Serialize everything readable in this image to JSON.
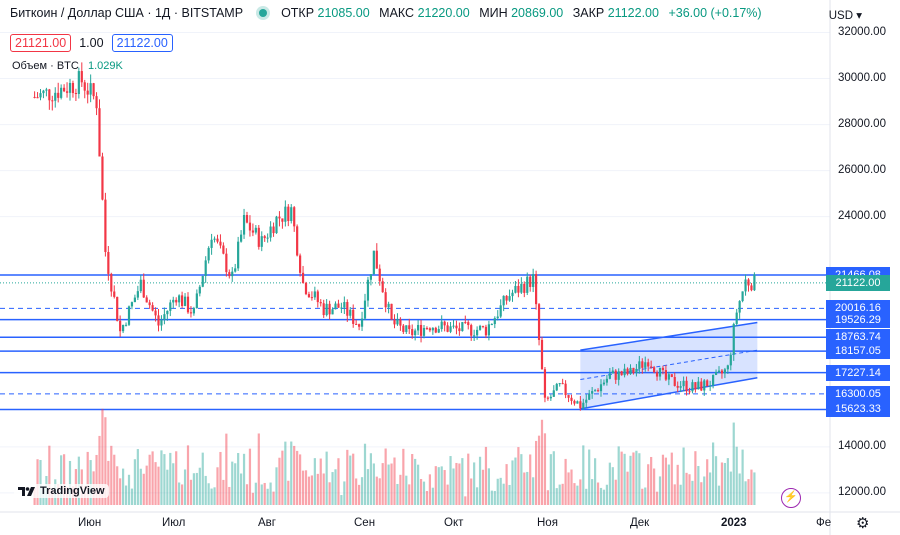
{
  "header": {
    "title": "Биткоин / Доллар США · 1Д · BITSTAMP",
    "open_label": "ОТКР",
    "open_value": "21085.00",
    "high_label": "МАКС",
    "high_value": "21220.00",
    "low_label": "МИН",
    "low_value": "20869.00",
    "close_label": "ЗАКР",
    "close_value": "21122.00",
    "change": "+36.00 (+0.17%)"
  },
  "quote": {
    "bid": "21121.00",
    "spread": "1.00",
    "ask": "21122.00"
  },
  "volume": {
    "label": "Объем · BTC",
    "value": "1.029K"
  },
  "currency": "USD",
  "currency_dropdown_icon": "chevron-down-icon",
  "logo_text": "TradingView",
  "bolt_icon": "lightning-icon",
  "gear_icon": "gear-icon",
  "colors": {
    "up": "#26a69a",
    "down": "#f23645",
    "line": "#2962ff",
    "channel_fill": "rgba(41,98,255,0.18)"
  },
  "chart_data": {
    "type": "candlestick",
    "y_axis": {
      "ticks": [
        "32000.00",
        "30000.00",
        "28000.00",
        "26000.00",
        "24000.00",
        "14000.00",
        "12000.00"
      ],
      "tick_values": [
        32000,
        30000,
        28000,
        26000,
        24000,
        14000,
        12000
      ],
      "range": [
        11500,
        32500
      ]
    },
    "x_axis": {
      "ticks": [
        "Июн",
        "Июл",
        "Авг",
        "Сен",
        "Окт",
        "Ноя",
        "Дек",
        "2023",
        "Фе"
      ],
      "bold_tick": "2023"
    },
    "horizontal_levels": [
      {
        "value": 21466.08,
        "label": "21466.08",
        "style": "solid"
      },
      {
        "value": 21122.0,
        "label": "21122.00",
        "style": "dotted-current"
      },
      {
        "value": 20016.16,
        "label": "20016.16",
        "style": "dashed"
      },
      {
        "value": 19526.29,
        "label": "19526.29",
        "style": "solid"
      },
      {
        "value": 18763.74,
        "label": "18763.74",
        "style": "solid"
      },
      {
        "value": 18157.05,
        "label": "18157.05",
        "style": "solid"
      },
      {
        "value": 17227.14,
        "label": "17227.14",
        "style": "solid"
      },
      {
        "value": 16300.05,
        "label": "16300.05",
        "style": "dashed"
      },
      {
        "value": 15623.33,
        "label": "15623.33",
        "style": "solid"
      }
    ],
    "series_close_points": [
      [
        "2022-05-20",
        29200
      ],
      [
        "2022-05-28",
        29500
      ],
      [
        "2022-06-05",
        29900
      ],
      [
        "2022-06-10",
        29000
      ],
      [
        "2022-06-13",
        22500
      ],
      [
        "2022-06-18",
        19000
      ],
      [
        "2022-06-25",
        21100
      ],
      [
        "2022-07-01",
        19300
      ],
      [
        "2022-07-07",
        20600
      ],
      [
        "2022-07-13",
        19800
      ],
      [
        "2022-07-19",
        23300
      ],
      [
        "2022-07-26",
        21300
      ],
      [
        "2022-07-30",
        23800
      ],
      [
        "2022-08-05",
        22900
      ],
      [
        "2022-08-10",
        23900
      ],
      [
        "2022-08-15",
        24300
      ],
      [
        "2022-08-19",
        21100
      ],
      [
        "2022-08-26",
        20000
      ],
      [
        "2022-09-01",
        20100
      ],
      [
        "2022-09-07",
        19300
      ],
      [
        "2022-09-12",
        22400
      ],
      [
        "2022-09-18",
        19400
      ],
      [
        "2022-09-24",
        18900
      ],
      [
        "2022-10-01",
        19300
      ],
      [
        "2022-10-10",
        19100
      ],
      [
        "2022-10-20",
        19100
      ],
      [
        "2022-10-28",
        20600
      ],
      [
        "2022-11-05",
        21300
      ],
      [
        "2022-11-09",
        15900
      ],
      [
        "2022-11-14",
        16600
      ],
      [
        "2022-11-21",
        15800
      ],
      [
        "2022-12-01",
        17100
      ],
      [
        "2022-12-08",
        17200
      ],
      [
        "2022-12-14",
        17800
      ],
      [
        "2022-12-20",
        16900
      ],
      [
        "2022-12-30",
        16550
      ],
      [
        "2023-01-05",
        16850
      ],
      [
        "2023-01-10",
        17400
      ],
      [
        "2023-01-13",
        19900
      ],
      [
        "2023-01-16",
        21200
      ],
      [
        "2023-01-20",
        21122
      ]
    ],
    "channel": {
      "type": "parallel-channel",
      "start_date": "2022-11-21",
      "end_date": "2023-01-20",
      "upper": [
        18200,
        19400
      ],
      "lower": [
        15650,
        17000
      ]
    },
    "volume": "histogram (red/green bars at bottom)"
  }
}
